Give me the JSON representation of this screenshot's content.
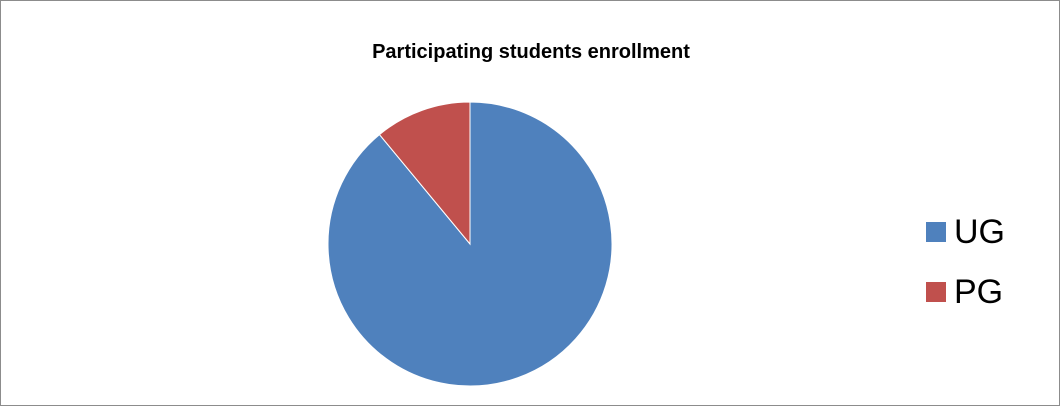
{
  "chart_data": {
    "type": "pie",
    "title": "Participating students enrollment",
    "categories": [
      "UG",
      "PG"
    ],
    "values": [
      89,
      11
    ],
    "colors": [
      "#4F81BD",
      "#C0504D"
    ],
    "legend": {
      "position": "right",
      "items": [
        {
          "label": "UG",
          "color": "#4F81BD"
        },
        {
          "label": "PG",
          "color": "#C0504D"
        }
      ]
    },
    "start_angle_deg": 0,
    "direction": "clockwise"
  }
}
